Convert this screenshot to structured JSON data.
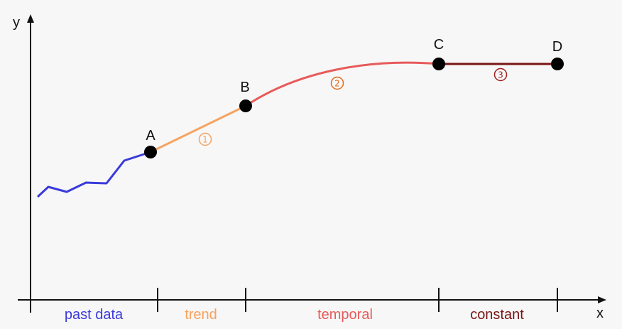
{
  "axes": {
    "x_label": "x",
    "y_label": "y"
  },
  "points": {
    "a": "A",
    "b": "B",
    "c": "C",
    "d": "D"
  },
  "segments": {
    "past": {
      "label": "past data",
      "color": "#3a3adb"
    },
    "trend": {
      "label": "trend",
      "color": "#f8a25e",
      "marker": "1"
    },
    "temporal": {
      "label": "temporal",
      "color": "#e85a5a",
      "marker": "2",
      "marker_color": "#e26a1c"
    },
    "constant": {
      "label": "constant",
      "color": "#7a1414",
      "marker": "3",
      "marker_color": "#a11d1d"
    }
  }
}
